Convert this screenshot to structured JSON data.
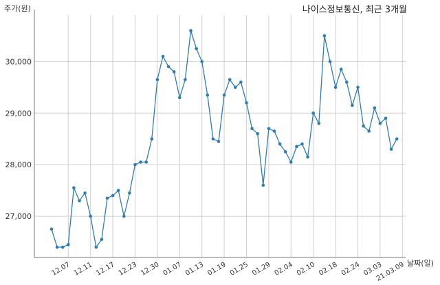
{
  "chart_data": {
    "type": "line",
    "title": "나이스정보통신, 최근 3개월",
    "xlabel": "날짜(일)",
    "ylabel": "주가(원)",
    "ylim": [
      26200,
      30900
    ],
    "yticks": [
      27000,
      28000,
      29000,
      30000
    ],
    "ytick_labels": [
      "27,000",
      "28,000",
      "29,000",
      "30,000"
    ],
    "xtick_labels": [
      "12.07",
      "12.11",
      "12.17",
      "12.23",
      "12.30",
      "01.07",
      "01.13",
      "01.19",
      "01.25",
      "01.29",
      "02.04",
      "02.10",
      "02.18",
      "02.24",
      "03.03",
      "21.03.09"
    ],
    "xtick_positions": [
      3,
      7,
      11,
      15,
      19,
      23,
      27,
      31,
      35,
      39,
      43,
      47,
      51,
      55,
      59,
      63
    ],
    "grid": true,
    "color": "#2f7cb0",
    "values": [
      26750,
      26400,
      26400,
      26450,
      27550,
      27300,
      27450,
      27000,
      26400,
      26550,
      27350,
      27400,
      27500,
      27000,
      27450,
      28000,
      28050,
      28050,
      28500,
      29650,
      30100,
      29900,
      29800,
      29300,
      29650,
      30600,
      30250,
      30000,
      29350,
      28500,
      28450,
      29350,
      29650,
      29500,
      29600,
      29200,
      28700,
      28600,
      27600,
      28700,
      28650,
      28400,
      28250,
      28050,
      28350,
      28400,
      28150,
      29000,
      28800,
      30500,
      30000,
      29500,
      29850,
      29600,
      29150,
      29500,
      28750,
      28650,
      29100,
      28800,
      28900,
      28300,
      28500
    ]
  }
}
